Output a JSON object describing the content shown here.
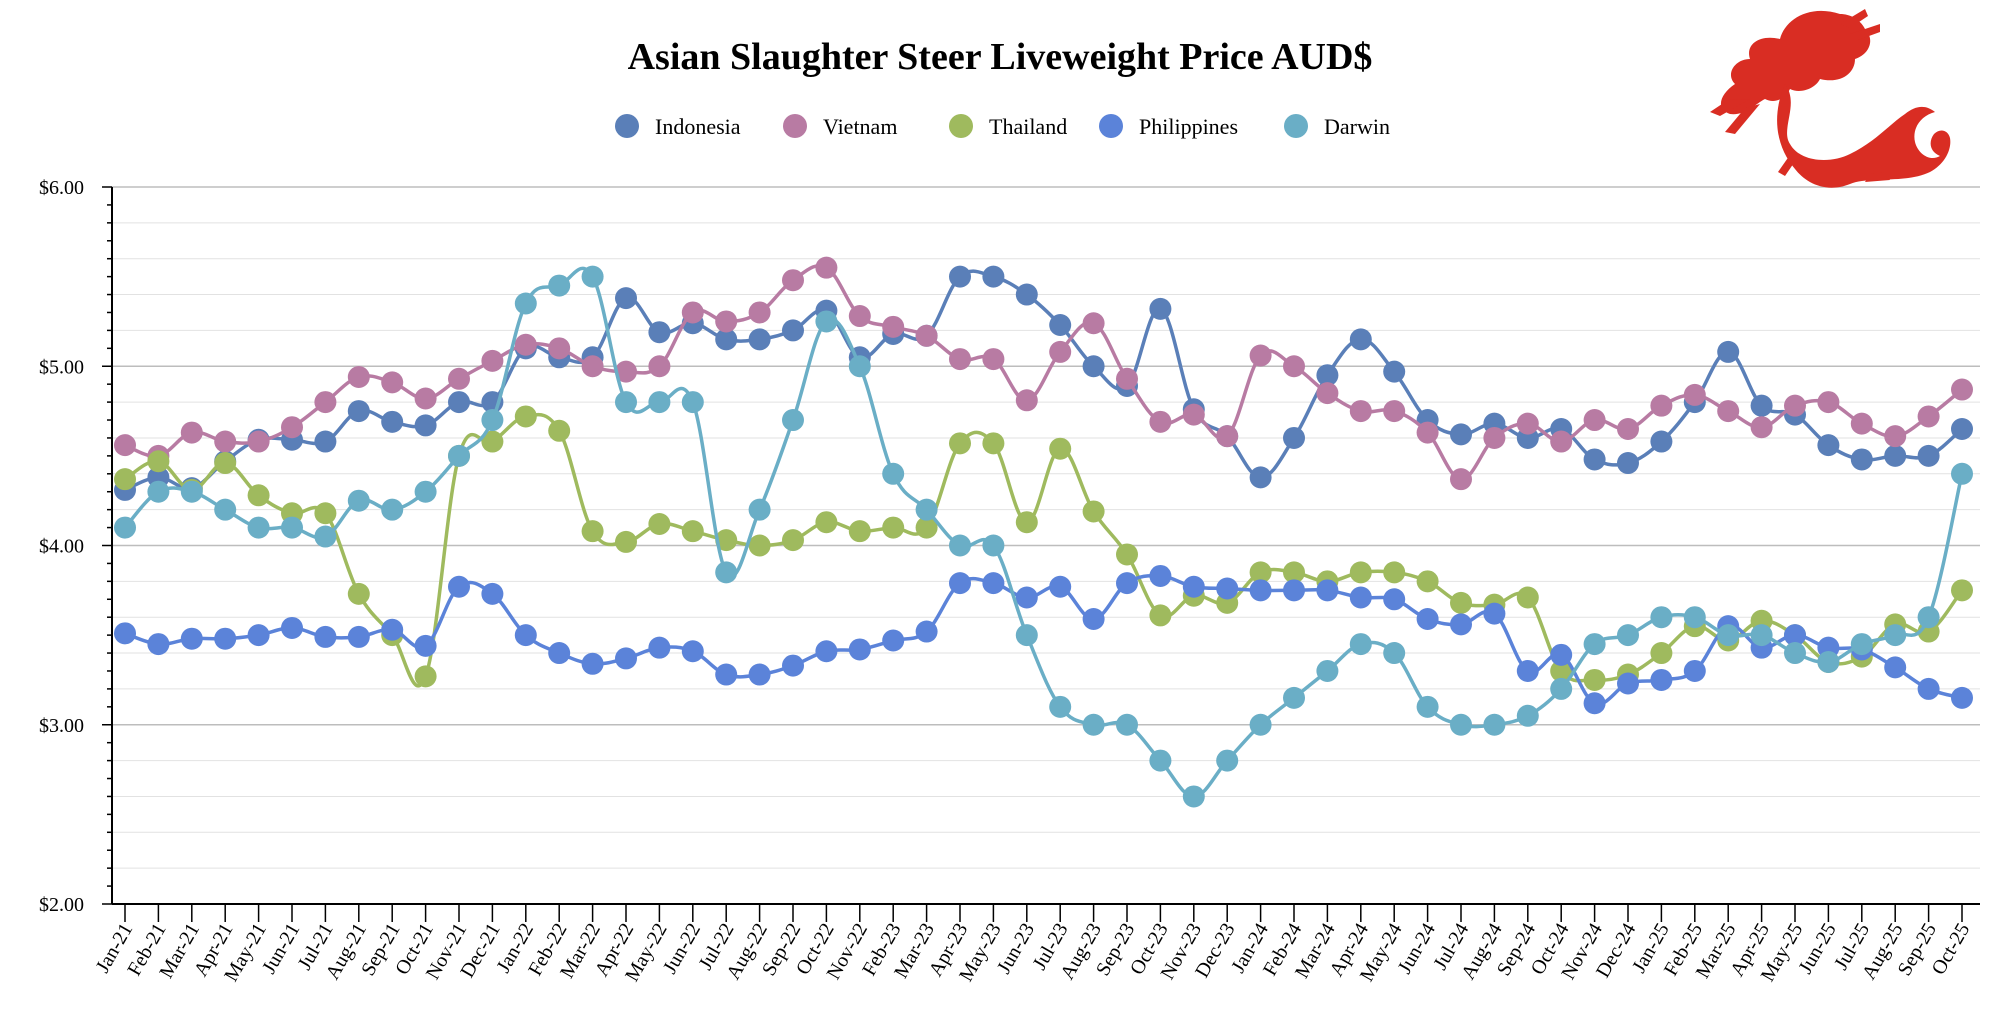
{
  "chart_data": {
    "type": "line",
    "title": "Asian Slaughter Steer Liveweight Price AUD$",
    "xlabel": "",
    "ylabel": "",
    "ylim": [
      2.0,
      6.0
    ],
    "y_tick_labels": [
      "$2.00",
      "$3.00",
      "$4.00",
      "$5.00",
      "$6.00"
    ],
    "y_tick_values": [
      2.0,
      3.0,
      4.0,
      5.0,
      6.0
    ],
    "grid": true,
    "legend": "top-center",
    "categories": [
      "Jan-21",
      "Feb-21",
      "Mar-21",
      "Apr-21",
      "May-21",
      "Jun-21",
      "Jul-21",
      "Aug-21",
      "Sep-21",
      "Oct-21",
      "Nov-21",
      "Dec-21",
      "Jan-22",
      "Feb-22",
      "Mar-22",
      "Apr-22",
      "May-22",
      "Jun-22",
      "Jul-22",
      "Aug-22",
      "Sep-22",
      "Oct-22",
      "Nov-22",
      "Feb-23",
      "Mar-23",
      "Apr-23",
      "May-23",
      "Jun-23",
      "Jul-23",
      "Aug-23",
      "Sep-23",
      "Oct-23",
      "Nov-23",
      "Dec-23",
      "Jan-24",
      "Feb-24",
      "Mar-24",
      "Apr-24",
      "May-24",
      "Jun-24",
      "Jul-24",
      "Aug-24",
      "Sep-24",
      "Oct-24",
      "Nov-24",
      "Dec-24",
      "Jan-25",
      "Feb-25",
      "Mar-25",
      "Apr-25",
      "May-25",
      "Jun-25",
      "Jul-25",
      "Aug-25",
      "Sep-25",
      "Oct-25"
    ],
    "series": [
      {
        "name": "Indonesia",
        "color": "#5a7fb8",
        "values": [
          4.31,
          4.38,
          4.32,
          4.47,
          4.59,
          4.59,
          4.58,
          4.75,
          4.69,
          4.67,
          4.8,
          4.8,
          5.1,
          5.05,
          5.05,
          5.38,
          5.19,
          5.24,
          5.15,
          5.15,
          5.2,
          5.31,
          5.05,
          5.18,
          5.17,
          5.5,
          5.5,
          5.4,
          5.23,
          5.0,
          4.89,
          5.32,
          4.76,
          4.61,
          4.38,
          4.6,
          4.95,
          5.15,
          4.97,
          4.7,
          4.62,
          4.68,
          4.6,
          4.65,
          4.48,
          4.46,
          4.58,
          4.8,
          5.08,
          4.78,
          4.73,
          4.56,
          4.48,
          4.5,
          4.5,
          4.65
        ]
      },
      {
        "name": "Vietnam",
        "color": "#b87ba3",
        "values": [
          4.56,
          4.5,
          4.63,
          4.58,
          4.58,
          4.66,
          4.8,
          4.94,
          4.91,
          4.82,
          4.93,
          5.03,
          5.12,
          5.1,
          5.0,
          4.97,
          5.0,
          5.3,
          5.25,
          5.3,
          5.48,
          5.55,
          5.28,
          5.22,
          5.17,
          5.04,
          5.04,
          4.81,
          5.08,
          5.24,
          4.93,
          4.69,
          4.73,
          4.61,
          5.06,
          5.0,
          4.85,
          4.75,
          4.75,
          4.63,
          4.37,
          4.6,
          4.68,
          4.58,
          4.7,
          4.65,
          4.78,
          4.84,
          4.75,
          4.66,
          4.78,
          4.8,
          4.68,
          4.61,
          4.72,
          4.87
        ]
      },
      {
        "name": "Thailand",
        "color": "#9fba5e",
        "values": [
          4.37,
          4.47,
          4.31,
          4.46,
          4.28,
          4.18,
          4.18,
          3.73,
          3.5,
          3.27,
          4.5,
          4.58,
          4.72,
          4.64,
          4.08,
          4.02,
          4.12,
          4.08,
          4.03,
          4.0,
          4.03,
          4.13,
          4.08,
          4.1,
          4.1,
          4.57,
          4.57,
          4.13,
          4.54,
          4.19,
          3.95,
          3.61,
          3.72,
          3.68,
          3.85,
          3.85,
          3.8,
          3.85,
          3.85,
          3.8,
          3.68,
          3.67,
          3.71,
          3.3,
          3.25,
          3.28,
          3.4,
          3.55,
          3.47,
          3.58,
          3.5,
          3.35,
          3.38,
          3.56,
          3.52,
          3.75
        ]
      },
      {
        "name": "Philippines",
        "color": "#5b83d9",
        "values": [
          3.51,
          3.45,
          3.48,
          3.48,
          3.5,
          3.54,
          3.49,
          3.49,
          3.53,
          3.44,
          3.77,
          3.73,
          3.5,
          3.4,
          3.34,
          3.37,
          3.43,
          3.41,
          3.28,
          3.28,
          3.33,
          3.41,
          3.42,
          3.47,
          3.52,
          3.79,
          3.79,
          3.71,
          3.77,
          3.59,
          3.79,
          3.83,
          3.77,
          3.76,
          3.75,
          3.75,
          3.75,
          3.71,
          3.7,
          3.59,
          3.56,
          3.62,
          3.3,
          3.39,
          3.12,
          3.23,
          3.25,
          3.3,
          3.55,
          3.43,
          3.5,
          3.43,
          3.42,
          3.32,
          3.2,
          3.15
        ]
      },
      {
        "name": "Darwin",
        "color": "#6aaec6",
        "values": [
          4.1,
          4.3,
          4.3,
          4.2,
          4.1,
          4.1,
          4.05,
          4.25,
          4.2,
          4.3,
          4.5,
          4.7,
          5.35,
          5.45,
          5.5,
          4.8,
          4.8,
          4.8,
          3.85,
          4.2,
          4.7,
          5.25,
          5.0,
          4.4,
          4.2,
          4.0,
          4.0,
          3.5,
          3.1,
          3.0,
          3.0,
          2.8,
          2.6,
          2.8,
          3.0,
          3.15,
          3.3,
          3.45,
          3.4,
          3.1,
          3.0,
          3.0,
          3.05,
          3.2,
          3.45,
          3.5,
          3.6,
          3.6,
          3.5,
          3.5,
          3.4,
          3.35,
          3.45,
          3.5,
          3.6,
          4.4
        ]
      }
    ]
  }
}
